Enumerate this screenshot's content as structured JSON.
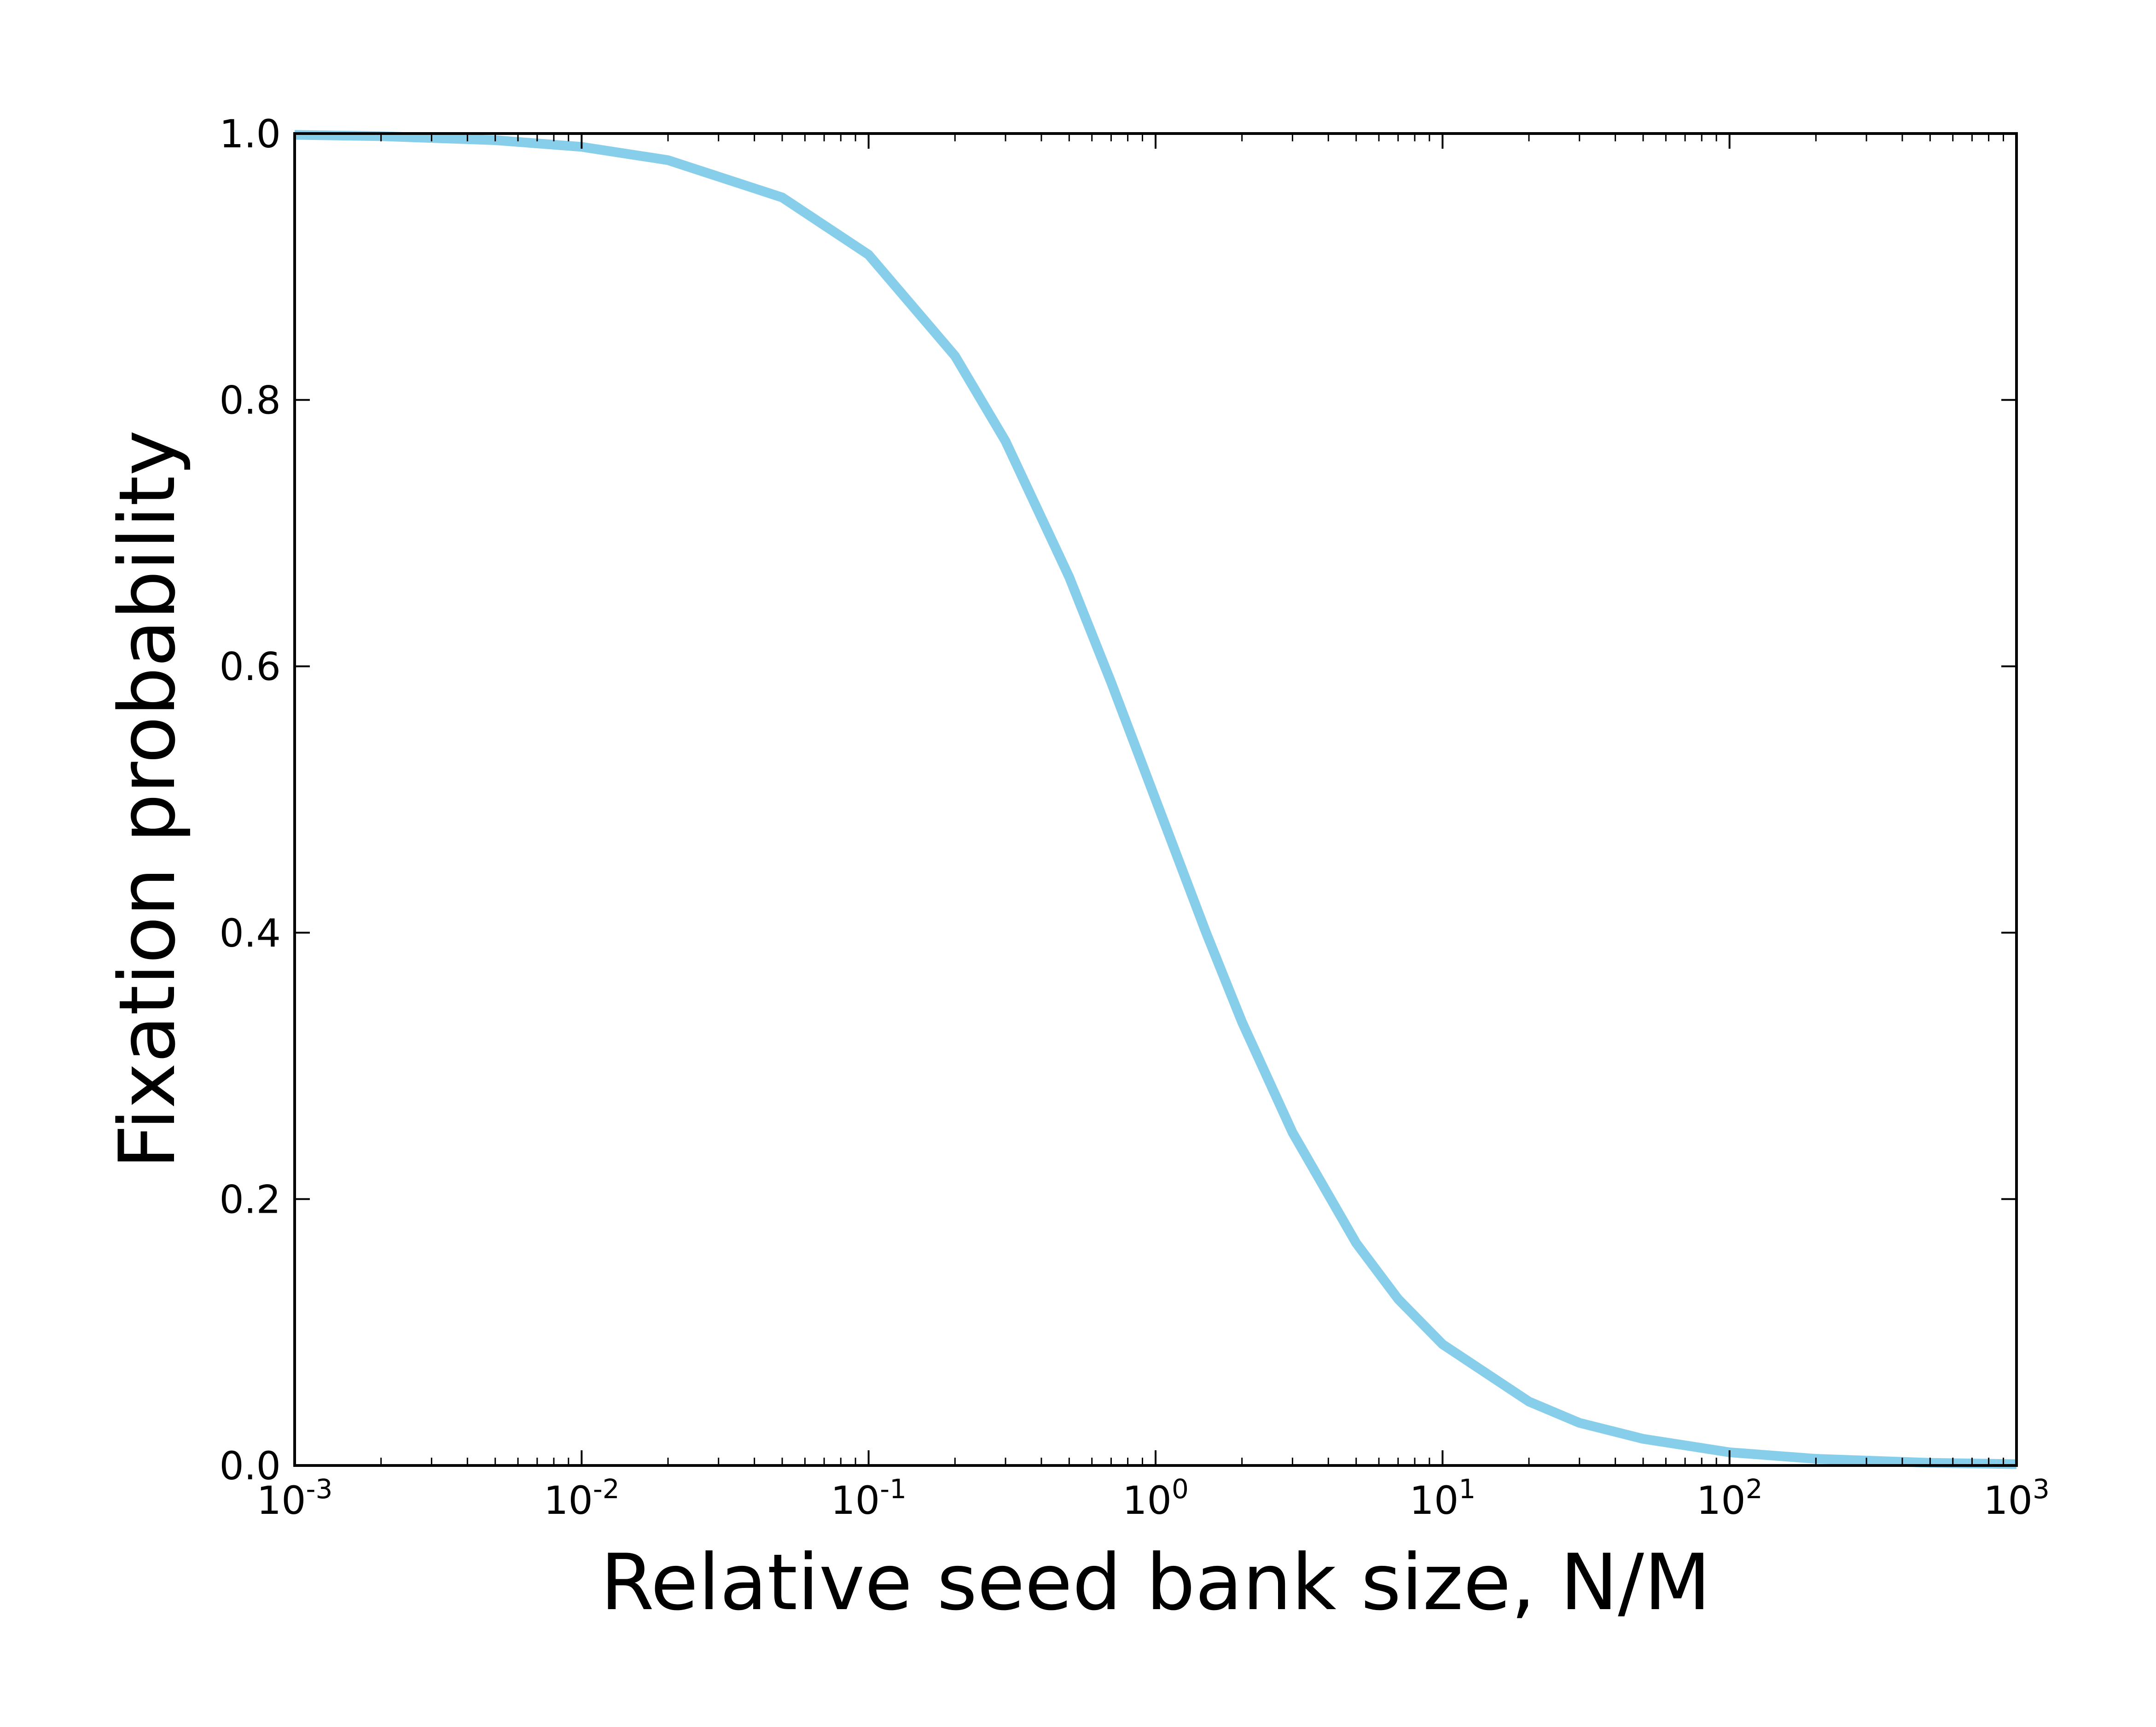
{
  "chart_data": {
    "type": "line",
    "title": "",
    "xlabel": "Relative seed bank size, N/M",
    "ylabel": "Fixation probability",
    "xscale": "log",
    "xlim": [
      0.001,
      1000
    ],
    "ylim": [
      0.0,
      1.0
    ],
    "grid": false,
    "legend": "none",
    "line_color": "#87CEEB",
    "x_ticks": [
      {
        "value": 0.001,
        "base": "10",
        "exp": "-3"
      },
      {
        "value": 0.01,
        "base": "10",
        "exp": "-2"
      },
      {
        "value": 0.1,
        "base": "10",
        "exp": "-1"
      },
      {
        "value": 1,
        "base": "10",
        "exp": "0"
      },
      {
        "value": 10,
        "base": "10",
        "exp": "1"
      },
      {
        "value": 100,
        "base": "10",
        "exp": "2"
      },
      {
        "value": 1000,
        "base": "10",
        "exp": "3"
      }
    ],
    "y_ticks": [
      {
        "value": 0.0,
        "label": "0.0"
      },
      {
        "value": 0.2,
        "label": "0.2"
      },
      {
        "value": 0.4,
        "label": "0.4"
      },
      {
        "value": 0.6,
        "label": "0.6"
      },
      {
        "value": 0.8,
        "label": "0.8"
      },
      {
        "value": 1.0,
        "label": "1.0"
      }
    ],
    "series": [
      {
        "x": [
          0.001,
          0.002,
          0.005,
          0.01,
          0.02,
          0.05,
          0.1,
          0.2,
          0.3,
          0.5,
          0.7,
          1,
          1.5,
          2,
          3,
          5,
          7,
          10,
          20,
          30,
          50,
          100,
          200,
          500,
          1000
        ],
        "y": [
          0.999,
          0.998,
          0.995,
          0.99,
          0.98,
          0.952,
          0.909,
          0.833,
          0.769,
          0.667,
          0.588,
          0.5,
          0.4,
          0.333,
          0.25,
          0.167,
          0.125,
          0.091,
          0.048,
          0.032,
          0.02,
          0.0099,
          0.005,
          0.002,
          0.001
        ]
      }
    ]
  }
}
